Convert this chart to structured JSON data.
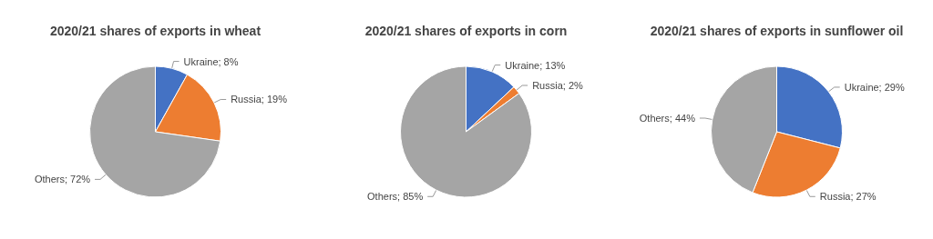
{
  "chart_data": [
    {
      "type": "pie",
      "title": "2020/21 shares of exports in wheat",
      "categories": [
        "Ukraine",
        "Russia",
        "Others"
      ],
      "values": [
        8,
        19,
        72
      ],
      "colors": [
        "#4472c4",
        "#ed7d31",
        "#a5a5a5"
      ],
      "value_labels": [
        "8%",
        "19%",
        "72%"
      ]
    },
    {
      "type": "pie",
      "title": "2020/21 shares of exports in corn",
      "categories": [
        "Ukraine",
        "Russia",
        "Others"
      ],
      "values": [
        13,
        2,
        85
      ],
      "colors": [
        "#4472c4",
        "#ed7d31",
        "#a5a5a5"
      ],
      "value_labels": [
        "13%",
        "2%",
        "85%"
      ]
    },
    {
      "type": "pie",
      "title": "2020/21 shares of exports in sunflower oil",
      "categories": [
        "Ukraine",
        "Russia",
        "Others"
      ],
      "values": [
        29,
        27,
        44
      ],
      "colors": [
        "#4472c4",
        "#ed7d31",
        "#a5a5a5"
      ],
      "value_labels": [
        "29%",
        "27%",
        "44%"
      ]
    }
  ]
}
